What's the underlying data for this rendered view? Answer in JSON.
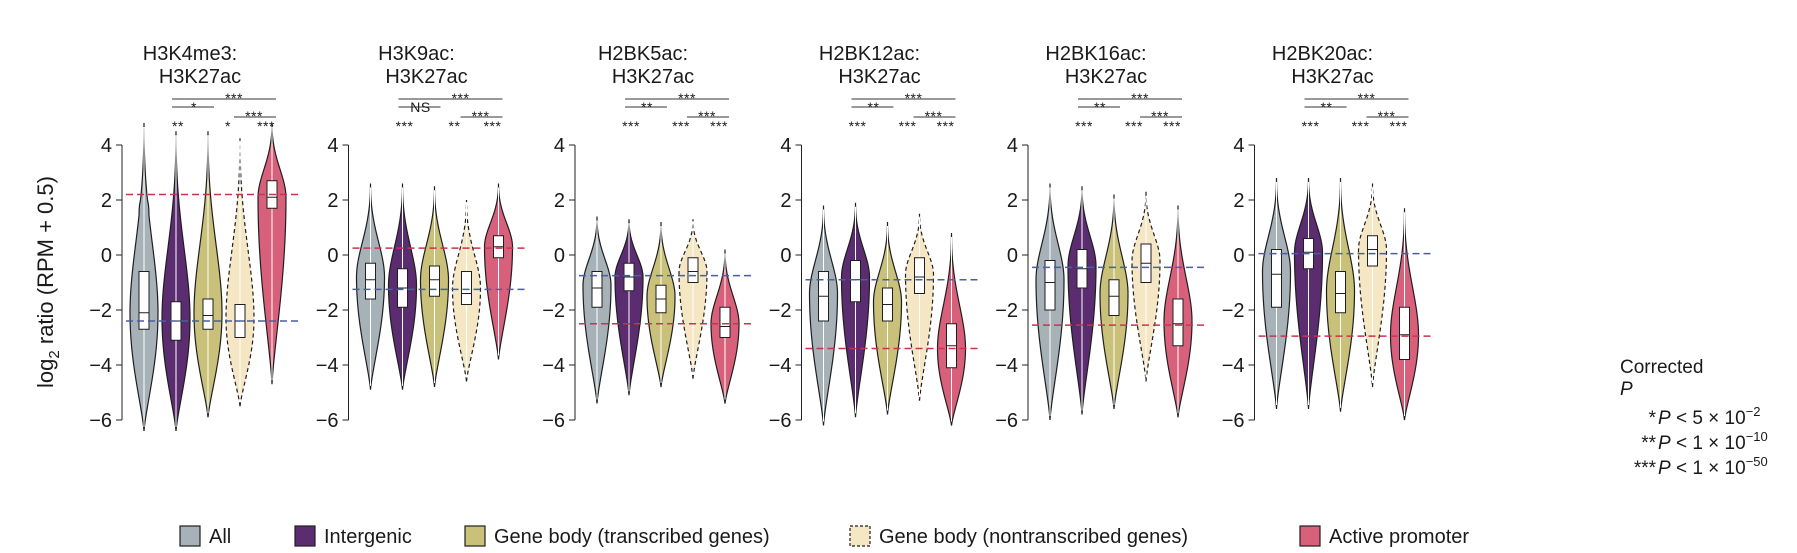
{
  "colors": {
    "all": "#a7b1b8",
    "intergenic": "#5b2c6f",
    "transcribed": "#c9c07a",
    "nontranscribed": "#f5e6c4",
    "promoter": "#d9607a",
    "red_line": "#c8344e",
    "blue_line": "#4a5fa0"
  },
  "chart_data": {
    "type": "violin",
    "ylabel": {
      "prefix": "log",
      "sub": "2",
      "rest": " ratio (RPM + 0.5)"
    },
    "ylim": [
      -6,
      4
    ],
    "yticks": [
      {
        "v": 4,
        "label": "4"
      },
      {
        "v": 2,
        "label": "2"
      },
      {
        "v": 0,
        "label": "0"
      },
      {
        "v": -2,
        "label": "−2"
      },
      {
        "v": -4,
        "label": "−4"
      },
      {
        "v": -6,
        "label": "−6"
      }
    ],
    "legend": [
      {
        "key": "all",
        "label": "All",
        "dashed": false
      },
      {
        "key": "intergenic",
        "label": "Intergenic",
        "dashed": false
      },
      {
        "key": "transcribed",
        "label": "Gene body (transcribed genes)",
        "dashed": false
      },
      {
        "key": "nontranscribed",
        "label": "Gene body (nontranscribed genes)",
        "dashed": true
      },
      {
        "key": "promoter",
        "label": "Active promoter",
        "dashed": false
      }
    ],
    "note": {
      "title1": "Corrected",
      "title2": "P",
      "rows": [
        {
          "stars": "*",
          "text": "P < 5 × 10",
          "exp": "−2"
        },
        {
          "stars": "**",
          "text": "P < 1 × 10",
          "exp": "−10"
        },
        {
          "stars": "***",
          "text": "P < 1 × 10",
          "exp": "−50"
        }
      ]
    },
    "panels": [
      {
        "title1": "H3K4me3:",
        "title2": "H3K27ac",
        "red_line": 2.2,
        "blue_line": -2.4,
        "sig_top": [
          "***",
          "*",
          "***"
        ],
        "sig_bottom": [
          "**",
          "*",
          "***"
        ],
        "violins": [
          {
            "key": "all",
            "min": -6.4,
            "max": 4.8,
            "q1": -2.7,
            "median": -2.1,
            "q3": -0.6,
            "mode": -2.1,
            "upper_tail": 1.6
          },
          {
            "key": "intergenic",
            "min": -6.4,
            "max": 4.5,
            "q1": -3.1,
            "median": -2.4,
            "q3": -1.7,
            "mode": -2.3
          },
          {
            "key": "transcribed",
            "min": -5.9,
            "max": 4.5,
            "q1": -2.7,
            "median": -2.2,
            "q3": -1.6,
            "mode": -2.1
          },
          {
            "key": "nontranscribed",
            "min": -5.5,
            "max": 4.3,
            "q1": -3.0,
            "median": -2.4,
            "q3": -1.8,
            "mode": -2.3
          },
          {
            "key": "promoter",
            "min": -4.7,
            "max": 4.8,
            "q1": 1.7,
            "median": 2.1,
            "q3": 2.7,
            "mode": 2.1
          }
        ]
      },
      {
        "title1": "H3K9ac:",
        "title2": "H3K27ac",
        "red_line": 0.25,
        "blue_line": -1.25,
        "sig_top": [
          "***",
          "NS",
          "***"
        ],
        "sig_bottom": [
          "***",
          "**",
          "***"
        ],
        "violins": [
          {
            "key": "all",
            "min": -4.9,
            "max": 2.6,
            "q1": -1.6,
            "median": -0.9,
            "q3": -0.3,
            "mode": -0.8
          },
          {
            "key": "intergenic",
            "min": -4.9,
            "max": 2.6,
            "q1": -1.9,
            "median": -1.2,
            "q3": -0.5,
            "mode": -1.1
          },
          {
            "key": "transcribed",
            "min": -4.8,
            "max": 2.5,
            "q1": -1.5,
            "median": -0.9,
            "q3": -0.4,
            "mode": -0.9
          },
          {
            "key": "nontranscribed",
            "min": -4.6,
            "max": 2.0,
            "q1": -1.8,
            "median": -1.4,
            "q3": -0.6,
            "mode": -1.2
          },
          {
            "key": "promoter",
            "min": -3.8,
            "max": 2.6,
            "q1": -0.1,
            "median": 0.3,
            "q3": 0.7,
            "mode": 0.3
          }
        ]
      },
      {
        "title1": "H2BK5ac:",
        "title2": "H3K27ac",
        "red_line": -2.5,
        "blue_line": -0.75,
        "sig_top": [
          "***",
          "**",
          "***"
        ],
        "sig_bottom": [
          "***",
          "***",
          "***"
        ],
        "violins": [
          {
            "key": "all",
            "min": -5.4,
            "max": 1.4,
            "q1": -1.9,
            "median": -1.2,
            "q3": -0.6,
            "mode": -1.1
          },
          {
            "key": "intergenic",
            "min": -5.1,
            "max": 1.3,
            "q1": -1.3,
            "median": -0.8,
            "q3": -0.3,
            "mode": -0.8
          },
          {
            "key": "transcribed",
            "min": -4.8,
            "max": 1.2,
            "q1": -2.1,
            "median": -1.6,
            "q3": -1.1,
            "mode": -1.5
          },
          {
            "key": "nontranscribed",
            "min": -4.5,
            "max": 1.3,
            "q1": -1.0,
            "median": -0.6,
            "q3": -0.1,
            "mode": -0.6
          },
          {
            "key": "promoter",
            "min": -5.4,
            "max": 0.2,
            "q1": -3.0,
            "median": -2.6,
            "q3": -1.9,
            "mode": -2.5
          }
        ]
      },
      {
        "title1": "H2BK12ac:",
        "title2": "H3K27ac",
        "red_line": -3.4,
        "blue_line": -0.9,
        "sig_top": [
          "***",
          "**",
          "***"
        ],
        "sig_bottom": [
          "***",
          "***",
          "***"
        ],
        "violins": [
          {
            "key": "all",
            "min": -6.2,
            "max": 1.8,
            "q1": -2.4,
            "median": -1.5,
            "q3": -0.6,
            "mode": -1.4
          },
          {
            "key": "intergenic",
            "min": -5.9,
            "max": 1.9,
            "q1": -1.7,
            "median": -0.9,
            "q3": -0.2,
            "mode": -0.8
          },
          {
            "key": "transcribed",
            "min": -5.8,
            "max": 1.2,
            "q1": -2.4,
            "median": -1.8,
            "q3": -1.2,
            "mode": -1.7
          },
          {
            "key": "nontranscribed",
            "min": -5.3,
            "max": 1.5,
            "q1": -1.4,
            "median": -0.8,
            "q3": -0.1,
            "mode": -0.7
          },
          {
            "key": "promoter",
            "min": -6.2,
            "max": 0.8,
            "q1": -4.1,
            "median": -3.3,
            "q3": -2.5,
            "mode": -3.4
          }
        ]
      },
      {
        "title1": "H2BK16ac:",
        "title2": "H3K27ac",
        "red_line": -2.55,
        "blue_line": -0.45,
        "sig_top": [
          "***",
          "**",
          "***"
        ],
        "sig_bottom": [
          "***",
          "***",
          "***"
        ],
        "violins": [
          {
            "key": "all",
            "min": -6.0,
            "max": 2.6,
            "q1": -2.0,
            "median": -1.0,
            "q3": -0.2,
            "mode": -0.9
          },
          {
            "key": "intergenic",
            "min": -5.8,
            "max": 2.5,
            "q1": -1.2,
            "median": -0.5,
            "q3": 0.2,
            "mode": -0.4
          },
          {
            "key": "transcribed",
            "min": -5.6,
            "max": 2.2,
            "q1": -2.2,
            "median": -1.5,
            "q3": -0.9,
            "mode": -1.4
          },
          {
            "key": "nontranscribed",
            "min": -4.6,
            "max": 2.3,
            "q1": -1.0,
            "median": -0.3,
            "q3": 0.4,
            "mode": -0.2
          },
          {
            "key": "promoter",
            "min": -5.9,
            "max": 1.8,
            "q1": -3.3,
            "median": -2.5,
            "q3": -1.6,
            "mode": -2.4
          }
        ]
      },
      {
        "title1": "H2BK20ac:",
        "title2": "H3K27ac",
        "red_line": -2.95,
        "blue_line": 0.05,
        "sig_top": [
          "***",
          "**",
          "***"
        ],
        "sig_bottom": [
          "***",
          "***",
          "***"
        ],
        "violins": [
          {
            "key": "all",
            "min": -5.6,
            "max": 2.8,
            "q1": -1.9,
            "median": -0.7,
            "q3": 0.2,
            "mode": -0.6
          },
          {
            "key": "intergenic",
            "min": -5.6,
            "max": 2.8,
            "q1": -0.5,
            "median": 0.1,
            "q3": 0.6,
            "mode": 0.1
          },
          {
            "key": "transcribed",
            "min": -5.7,
            "max": 2.8,
            "q1": -2.1,
            "median": -1.4,
            "q3": -0.6,
            "mode": -1.3
          },
          {
            "key": "nontranscribed",
            "min": -4.8,
            "max": 2.6,
            "q1": -0.4,
            "median": 0.2,
            "q3": 0.7,
            "mode": 0.2
          },
          {
            "key": "promoter",
            "min": -6.0,
            "max": 1.7,
            "q1": -3.8,
            "median": -2.9,
            "q3": -1.9,
            "mode": -2.9
          }
        ]
      }
    ]
  }
}
